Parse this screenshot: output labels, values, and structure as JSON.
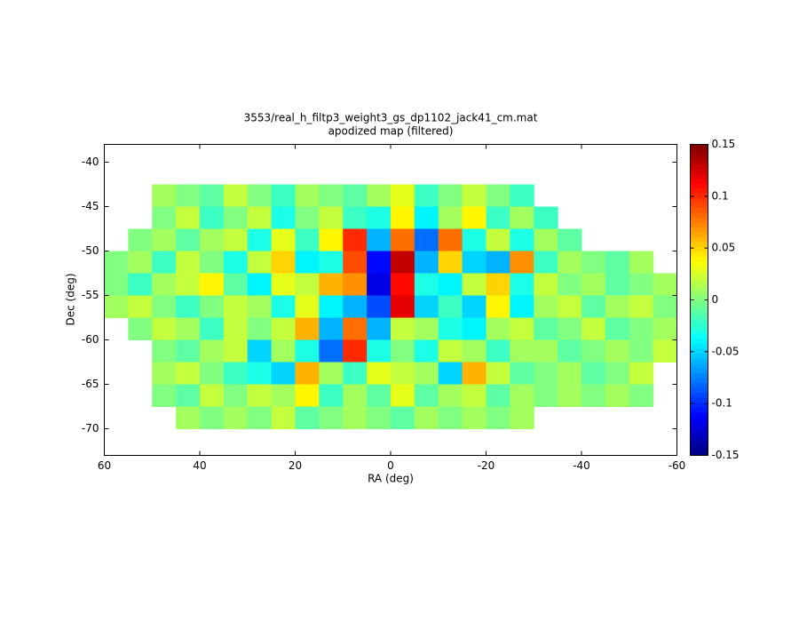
{
  "chart_data": {
    "type": "heatmap",
    "title": "3553/real_h_filtp3_weight3_gs_dp1102_jack41_cm.mat",
    "subtitle": "apodized map (filtered)",
    "x_label": "RA (deg)",
    "y_label": "Dec (deg)",
    "xlim": [
      60,
      -60
    ],
    "ylim": [
      -73,
      -38
    ],
    "xticks": [
      60,
      40,
      20,
      0,
      -20,
      -40,
      -60
    ],
    "yticks": [
      -40,
      -45,
      -50,
      -55,
      -60,
      -65,
      -70
    ],
    "clim": [
      -0.15,
      0.15
    ],
    "colorbar_ticks": [
      0.15,
      0.1,
      0.05,
      0,
      -0.05,
      -0.1,
      -0.15
    ],
    "colormap": "jet",
    "x": [
      57.5,
      52.5,
      47.5,
      42.5,
      37.5,
      32.5,
      27.5,
      22.5,
      17.5,
      12.5,
      7.5,
      2.5,
      -2.5,
      -7.5,
      -12.5,
      -17.5,
      -22.5,
      -27.5,
      -32.5,
      -37.5,
      -42.5,
      -47.5,
      -52.5,
      -57.5
    ],
    "y": [
      -43.75,
      -46.25,
      -48.75,
      -51.25,
      -53.75,
      -56.25,
      -58.75,
      -61.25,
      -63.75,
      -66.25,
      -68.75
    ],
    "z": [
      [
        null,
        null,
        0.01,
        0,
        -0.01,
        0.02,
        0,
        -0.02,
        0.01,
        0,
        -0.01,
        0.01,
        0.03,
        -0.02,
        0,
        0.02,
        0,
        -0.02,
        null,
        null,
        null,
        null,
        null,
        null
      ],
      [
        null,
        null,
        0,
        0.02,
        -0.02,
        0,
        0.02,
        -0.03,
        0,
        0.02,
        -0.02,
        -0.03,
        0.04,
        -0.04,
        0.01,
        0.04,
        -0.02,
        0.01,
        -0.02,
        null,
        null,
        null,
        null,
        null
      ],
      [
        null,
        0,
        0.01,
        -0.01,
        0.01,
        0.02,
        -0.03,
        0.03,
        -0.02,
        0.04,
        0.1,
        -0.06,
        0.08,
        -0.08,
        0.08,
        -0.03,
        0.02,
        -0.03,
        0.01,
        -0.01,
        null,
        null,
        null,
        null
      ],
      [
        0,
        0.01,
        -0.02,
        0.02,
        0,
        -0.03,
        0.02,
        0.05,
        -0.04,
        -0.03,
        0.09,
        -0.11,
        0.13,
        -0.06,
        0.05,
        -0.05,
        -0.06,
        0.07,
        -0.02,
        0.01,
        0,
        -0.01,
        0.01,
        null
      ],
      [
        0,
        -0.02,
        0.01,
        0.02,
        0.04,
        -0.01,
        -0.04,
        0.03,
        0.02,
        0.06,
        0.07,
        -0.12,
        0.11,
        -0.03,
        -0.04,
        0.02,
        0.05,
        -0.03,
        0.02,
        0,
        0.01,
        -0.01,
        0,
        0.01
      ],
      [
        0.01,
        0.02,
        0,
        -0.02,
        0,
        0.02,
        0.01,
        -0.03,
        0.03,
        -0.04,
        -0.06,
        -0.09,
        0.12,
        -0.05,
        -0.02,
        -0.05,
        0.04,
        -0.04,
        0.01,
        0.02,
        -0.01,
        0.01,
        0.02,
        0
      ],
      [
        null,
        0,
        0.02,
        0.01,
        -0.02,
        0.02,
        0,
        0.02,
        0.06,
        -0.06,
        0.08,
        -0.06,
        0.02,
        0.01,
        -0.03,
        -0.04,
        0.01,
        0.02,
        -0.01,
        0,
        0.02,
        -0.01,
        0,
        0.01
      ],
      [
        null,
        null,
        0,
        -0.01,
        0.01,
        0.02,
        -0.05,
        0.01,
        -0.03,
        -0.08,
        0.1,
        -0.03,
        0,
        -0.03,
        0.02,
        0.01,
        -0.02,
        0.01,
        0.01,
        -0.01,
        0,
        0.01,
        0,
        0.02
      ],
      [
        null,
        null,
        0.01,
        0.02,
        0,
        -0.02,
        -0.03,
        -0.05,
        0.06,
        0.01,
        -0.02,
        0.03,
        0.02,
        0.01,
        -0.05,
        0.06,
        0.02,
        -0.01,
        0,
        0.01,
        -0.01,
        0,
        0.02,
        null
      ],
      [
        null,
        null,
        0,
        -0.01,
        0.02,
        0,
        0.02,
        0.01,
        0.04,
        -0.02,
        0.01,
        -0.01,
        0.03,
        -0.01,
        0.01,
        0.02,
        -0.01,
        0.01,
        0,
        0.01,
        0,
        0.01,
        0,
        null
      ],
      [
        null,
        null,
        null,
        0.01,
        0,
        0.01,
        0,
        0.02,
        -0.01,
        0,
        0.01,
        0,
        -0.01,
        0.01,
        0,
        0.01,
        0,
        0.01,
        null,
        null,
        null,
        null,
        null,
        null
      ]
    ]
  }
}
